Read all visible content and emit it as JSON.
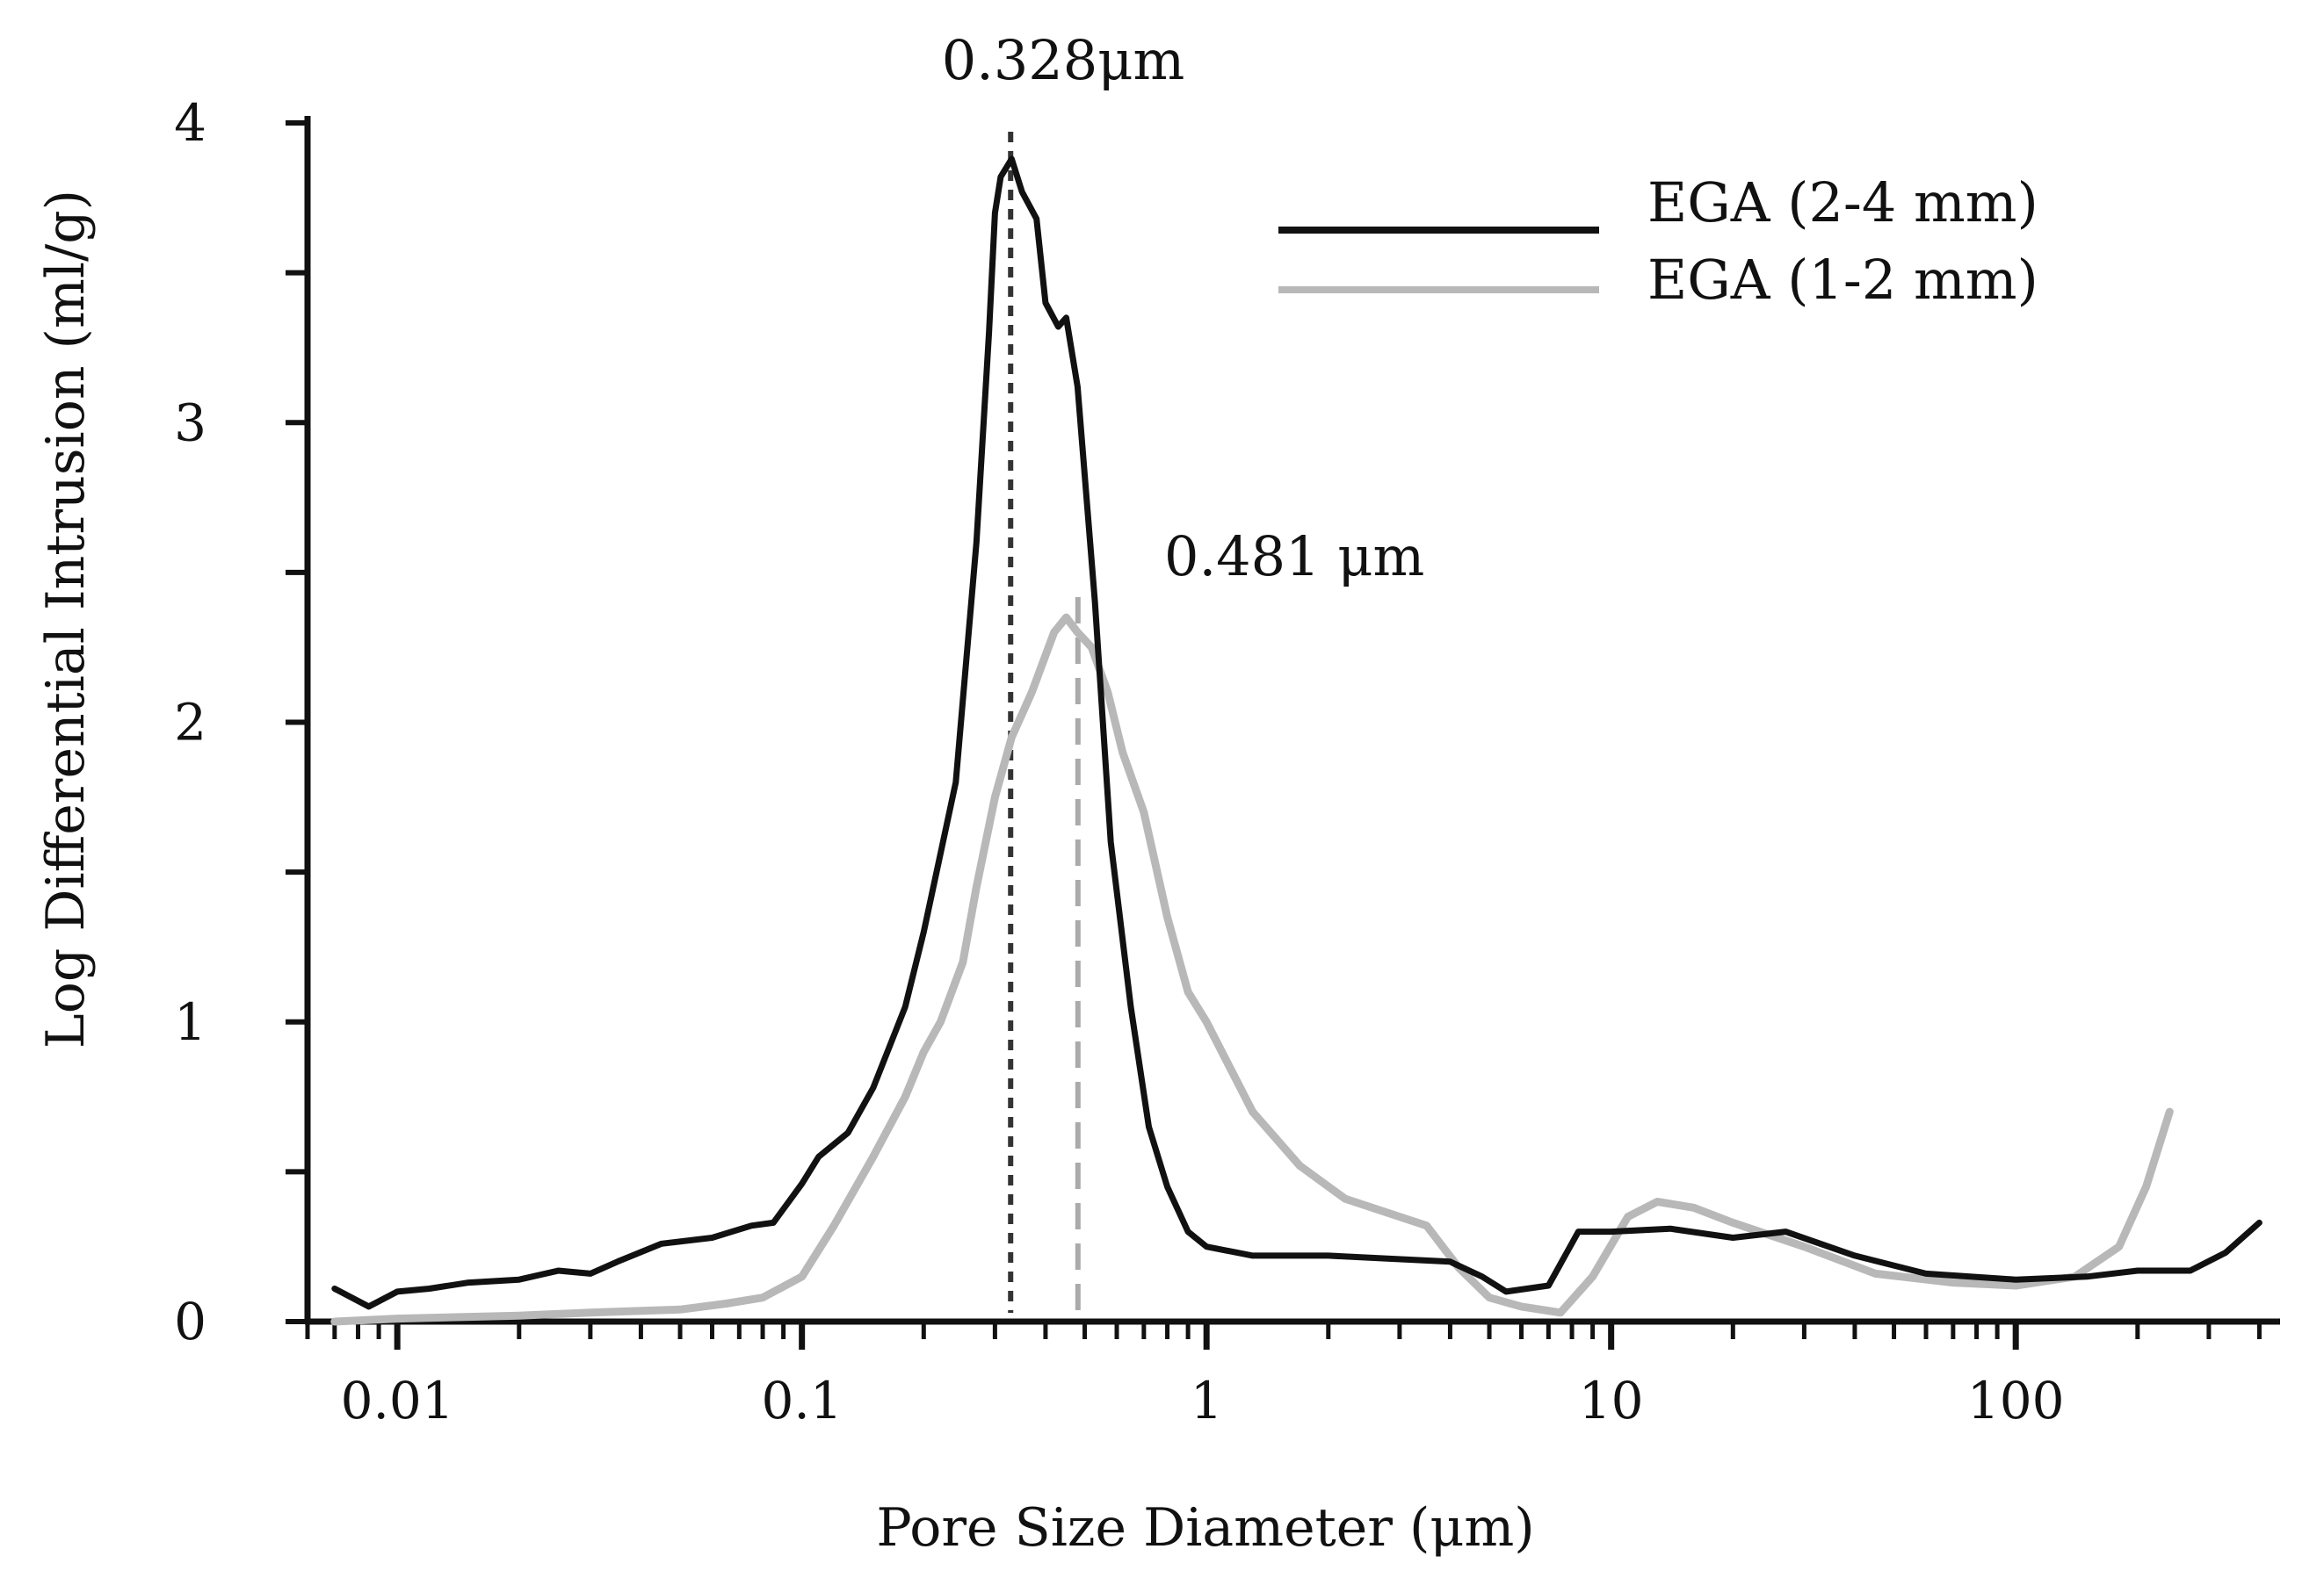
{
  "chart_data": {
    "type": "line",
    "title": "",
    "xlabel": "Pore Size Diameter (μm)",
    "ylabel": "Log Differential Intrusion (ml/g)",
    "xscale": "log",
    "xlim": [
      0.006,
      450
    ],
    "ylim": [
      0,
      4
    ],
    "x_tick_labels": [
      "0.01",
      "0.1",
      "1",
      "10",
      "100"
    ],
    "x_tick_values": [
      0.01,
      0.1,
      1,
      10,
      100
    ],
    "y_tick_labels": [
      "0",
      "1",
      "2",
      "3",
      "4"
    ],
    "y_tick_values": [
      0,
      1,
      2,
      3,
      4
    ],
    "legend_position": "top-right",
    "series": [
      {
        "name": "EGA (2-4 mm)",
        "color": "#111111",
        "points": [
          [
            0.007,
            0.11
          ],
          [
            0.0085,
            0.05
          ],
          [
            0.01,
            0.1
          ],
          [
            0.012,
            0.11
          ],
          [
            0.015,
            0.13
          ],
          [
            0.02,
            0.14
          ],
          [
            0.025,
            0.17
          ],
          [
            0.03,
            0.16
          ],
          [
            0.035,
            0.2
          ],
          [
            0.045,
            0.26
          ],
          [
            0.06,
            0.28
          ],
          [
            0.075,
            0.32
          ],
          [
            0.085,
            0.33
          ],
          [
            0.1,
            0.46
          ],
          [
            0.11,
            0.55
          ],
          [
            0.13,
            0.63
          ],
          [
            0.15,
            0.78
          ],
          [
            0.18,
            1.05
          ],
          [
            0.2,
            1.3
          ],
          [
            0.24,
            1.8
          ],
          [
            0.27,
            2.6
          ],
          [
            0.29,
            3.3
          ],
          [
            0.3,
            3.7
          ],
          [
            0.31,
            3.82
          ],
          [
            0.33,
            3.88
          ],
          [
            0.35,
            3.77
          ],
          [
            0.38,
            3.68
          ],
          [
            0.4,
            3.4
          ],
          [
            0.43,
            3.32
          ],
          [
            0.45,
            3.35
          ],
          [
            0.48,
            3.12
          ],
          [
            0.53,
            2.4
          ],
          [
            0.58,
            1.6
          ],
          [
            0.65,
            1.05
          ],
          [
            0.72,
            0.65
          ],
          [
            0.8,
            0.45
          ],
          [
            0.9,
            0.3
          ],
          [
            1.0,
            0.25
          ],
          [
            1.3,
            0.22
          ],
          [
            2.0,
            0.22
          ],
          [
            2.8,
            0.21
          ],
          [
            4.0,
            0.2
          ],
          [
            4.8,
            0.15
          ],
          [
            5.5,
            0.1
          ],
          [
            7.0,
            0.12
          ],
          [
            8.3,
            0.3
          ],
          [
            10,
            0.3
          ],
          [
            14,
            0.31
          ],
          [
            20,
            0.28
          ],
          [
            27,
            0.3
          ],
          [
            40,
            0.22
          ],
          [
            60,
            0.16
          ],
          [
            100,
            0.14
          ],
          [
            150,
            0.15
          ],
          [
            200,
            0.17
          ],
          [
            270,
            0.17
          ],
          [
            330,
            0.23
          ],
          [
            400,
            0.33
          ]
        ]
      },
      {
        "name": "EGA (1-2 mm)",
        "color": "#b8b8b8",
        "points": [
          [
            0.007,
            0.0
          ],
          [
            0.01,
            0.01
          ],
          [
            0.02,
            0.02
          ],
          [
            0.03,
            0.03
          ],
          [
            0.05,
            0.04
          ],
          [
            0.065,
            0.06
          ],
          [
            0.08,
            0.08
          ],
          [
            0.1,
            0.15
          ],
          [
            0.12,
            0.32
          ],
          [
            0.15,
            0.55
          ],
          [
            0.18,
            0.75
          ],
          [
            0.2,
            0.9
          ],
          [
            0.22,
            1.0
          ],
          [
            0.25,
            1.2
          ],
          [
            0.27,
            1.45
          ],
          [
            0.3,
            1.75
          ],
          [
            0.33,
            1.95
          ],
          [
            0.37,
            2.1
          ],
          [
            0.42,
            2.3
          ],
          [
            0.45,
            2.35
          ],
          [
            0.48,
            2.3
          ],
          [
            0.52,
            2.25
          ],
          [
            0.57,
            2.1
          ],
          [
            0.62,
            1.9
          ],
          [
            0.7,
            1.7
          ],
          [
            0.8,
            1.35
          ],
          [
            0.9,
            1.1
          ],
          [
            1.0,
            1.0
          ],
          [
            1.3,
            0.7
          ],
          [
            1.7,
            0.52
          ],
          [
            2.2,
            0.41
          ],
          [
            3.0,
            0.35
          ],
          [
            3.5,
            0.32
          ],
          [
            4.2,
            0.18
          ],
          [
            5.0,
            0.08
          ],
          [
            6.0,
            0.05
          ],
          [
            7.5,
            0.03
          ],
          [
            9.0,
            0.15
          ],
          [
            11,
            0.35
          ],
          [
            13,
            0.4
          ],
          [
            16,
            0.38
          ],
          [
            20,
            0.33
          ],
          [
            30,
            0.25
          ],
          [
            45,
            0.16
          ],
          [
            70,
            0.13
          ],
          [
            100,
            0.12
          ],
          [
            140,
            0.15
          ],
          [
            180,
            0.25
          ],
          [
            210,
            0.45
          ],
          [
            240,
            0.7
          ]
        ]
      }
    ],
    "annotations": [
      {
        "text": "0.328μm",
        "x": 0.328,
        "line_style": "dotted",
        "color": "#333333"
      },
      {
        "text": "0.481 μm",
        "x": 0.481,
        "line_style": "dashed",
        "color": "#aaaaaa"
      }
    ]
  }
}
